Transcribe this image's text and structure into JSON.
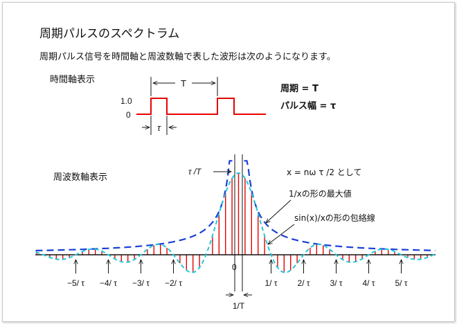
{
  "title": "周期パルスのスペクトラム",
  "description": "周期パルス信号を時間軸と周波数軸で表した波形は次のようになります。",
  "time_domain": {
    "label": "時間軸表示",
    "level_high": "1.0",
    "level_low": "0",
    "period_marker": "T",
    "width_marker": "τ",
    "period_note": "周期 = T",
    "width_note": "パルス幅 = τ"
  },
  "freq_domain": {
    "label": "周波数軸表示",
    "peak_label": "τ /T",
    "origin_label": "0",
    "spacing_label": "1/T",
    "x_def": "x = nω τ /2 として",
    "envelope_1x": "1/xの形の最大値",
    "envelope_sinc": "sin(x)/xの形の包絡線",
    "ticks_neg": [
      "−5/ τ",
      "−4/ τ",
      "−3/ τ",
      "−2/ τ"
    ],
    "ticks_pos": [
      "1/ τ",
      "2/ τ",
      "3/ τ",
      "4/ τ",
      "5/ τ"
    ]
  },
  "colors": {
    "pulse": "#e60000",
    "lines": "#e60000",
    "envelope_1x": "#1a3fd6",
    "envelope_sinc": "#22c7d9",
    "text": "#111111"
  }
}
